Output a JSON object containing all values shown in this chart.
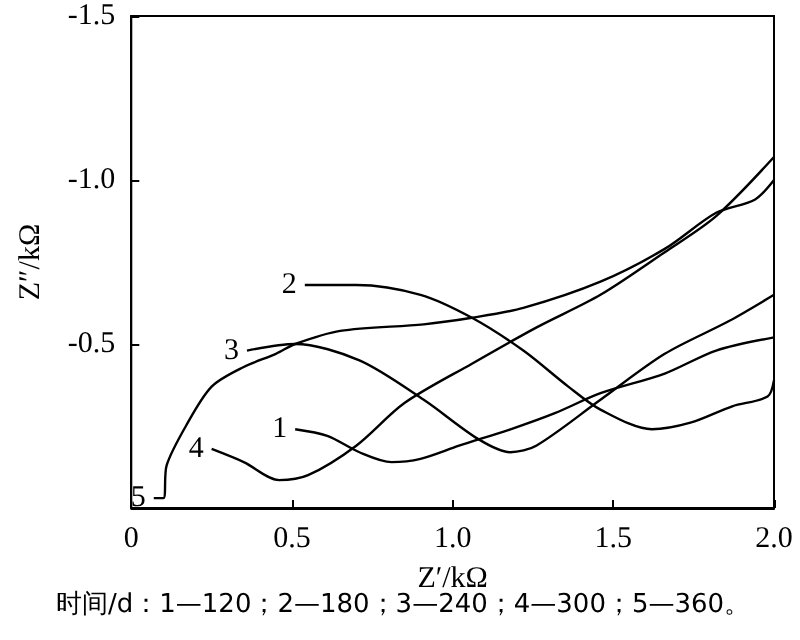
{
  "chart_data": {
    "type": "line",
    "xlabel": "Z′/kΩ",
    "ylabel": "Z″/kΩ",
    "annotations": [
      "时间/d：1—120；2—180；3—240；4—300；5—360。"
    ],
    "xlim": [
      0,
      2.0
    ],
    "xticks": [
      0,
      0.5,
      {
        "value": 1,
        "label": "1.0"
      },
      1.5,
      {
        "value": 2,
        "label": "2.0"
      }
    ],
    "ylim": [
      0,
      -1.5
    ],
    "yticks": [
      {
        "value": -0.5,
        "label": "-0.5"
      },
      {
        "value": -1,
        "label": "-1.0"
      },
      {
        "value": -1.5,
        "label": "-1.5"
      }
    ],
    "grid": false,
    "legend": false,
    "marker": "none",
    "line_style": "solid",
    "series": [
      {
        "name": "1",
        "color": "#000000",
        "x": [
          0.51,
          0.61,
          0.71,
          0.81,
          0.9,
          1.02,
          1.18,
          1.32,
          1.46,
          1.66,
          1.82,
          2.0
        ],
        "values": [
          -0.24,
          -0.22,
          -0.17,
          -0.14,
          -0.15,
          -0.19,
          -0.24,
          -0.29,
          -0.35,
          -0.41,
          -0.48,
          -0.52
        ]
      },
      {
        "name": "2",
        "color": "#000000",
        "x": [
          0.54,
          0.7,
          0.9,
          1.06,
          1.22,
          1.36,
          1.46,
          1.62,
          1.74,
          1.87,
          1.98,
          2.0
        ],
        "values": [
          -0.68,
          -0.68,
          -0.65,
          -0.58,
          -0.48,
          -0.37,
          -0.3,
          -0.24,
          -0.26,
          -0.31,
          -0.34,
          -0.39
        ]
      },
      {
        "name": "3",
        "color": "#000000",
        "x": [
          0.36,
          0.51,
          0.71,
          0.91,
          1.08,
          1.18,
          1.26,
          1.46,
          1.66,
          1.86,
          2.0
        ],
        "values": [
          -0.48,
          -0.5,
          -0.45,
          -0.33,
          -0.21,
          -0.17,
          -0.19,
          -0.33,
          -0.47,
          -0.57,
          -0.65
        ]
      },
      {
        "name": "4",
        "color": "#000000",
        "x": [
          0.25,
          0.35,
          0.46,
          0.55,
          0.7,
          0.85,
          1.06,
          1.26,
          1.46,
          1.66,
          1.82,
          2.0
        ],
        "values": [
          -0.18,
          -0.14,
          -0.085,
          -0.1,
          -0.19,
          -0.32,
          -0.44,
          -0.55,
          -0.65,
          -0.78,
          -0.89,
          -1.07
        ]
      },
      {
        "name": "5",
        "color": "#000000",
        "x": [
          0.07,
          0.1,
          0.11,
          0.17,
          0.25,
          0.35,
          0.45,
          0.51,
          0.65,
          0.91,
          1.06,
          1.22,
          1.46,
          1.66,
          1.82,
          1.94,
          2.0
        ],
        "values": [
          -0.03,
          -0.03,
          -0.13,
          -0.25,
          -0.37,
          -0.43,
          -0.47,
          -0.5,
          -0.54,
          -0.56,
          -0.58,
          -0.61,
          -0.69,
          -0.79,
          -0.9,
          -0.94,
          -1.0
        ]
      }
    ]
  }
}
